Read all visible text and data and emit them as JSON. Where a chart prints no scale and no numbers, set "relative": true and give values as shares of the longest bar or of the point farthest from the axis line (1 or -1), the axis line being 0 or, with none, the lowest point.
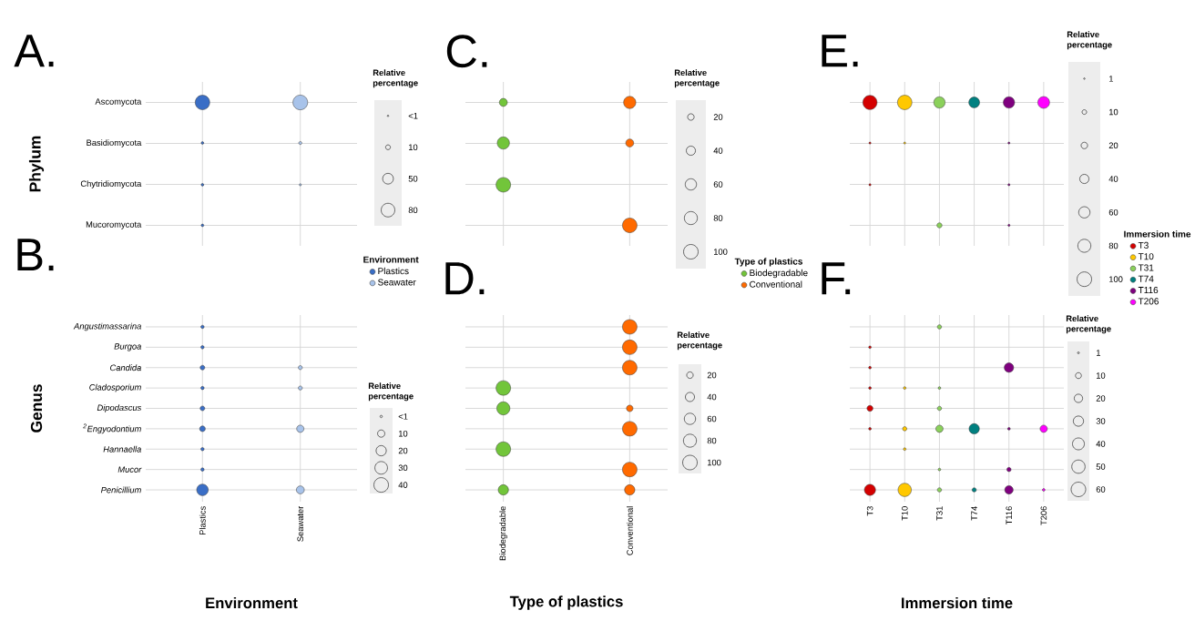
{
  "chart_data": [
    {
      "type": "bubble",
      "title": "A.",
      "ylabel": "Phylum",
      "categories": [
        "Plastics",
        "Seawater"
      ],
      "y_categories": [
        "Ascomycota",
        "Basidiomycota",
        "Chytridiomycota",
        "Mucoromycota"
      ],
      "relative": true,
      "tick_labels": "y",
      "grid": true,
      "annotations": [
        "Relative percentage"
      ],
      "size_legend": [
        {
          "value": 1,
          "label": "<1"
        },
        10,
        50,
        80
      ],
      "series": [
        {
          "color": "#3a6ec6",
          "x": [
            "Plastics",
            "Plastics",
            "Plastics",
            "Plastics"
          ],
          "values": [
            1,
            0.67,
            0.33,
            0
          ],
          "sizes": [
            90,
            3,
            3,
            3
          ]
        },
        {
          "color": "#a8c3ea",
          "x": [
            "Seawater",
            "Seawater",
            "Seawater"
          ],
          "values": [
            1,
            0.67,
            0.33
          ],
          "sizes": [
            93,
            4,
            2
          ]
        }
      ]
    },
    {
      "type": "bubble",
      "title": "B.",
      "ylabel": "Genus",
      "xlabel": "Environment",
      "categories": [
        "Plastics",
        "Seawater"
      ],
      "y_categories": [
        "Angustimassarina",
        "Burgoa",
        "Candida",
        "Cladosporium",
        "Dipodascus",
        "$^{2}$Engyodontium",
        "Hannaella",
        "Mucor",
        "Penicillium"
      ],
      "relative": true,
      "grid": true,
      "legend": "top right",
      "legend_title": "Environment",
      "annotations": [
        "Relative percentage"
      ],
      "size_legend": [
        {
          "value": 1,
          "label": "<1"
        },
        10,
        20,
        30,
        40
      ],
      "series": [
        {
          "name": "Plastics",
          "color": "#3a6ec6",
          "x": [
            "Plastics",
            "Plastics",
            "Plastics",
            "Plastics",
            "Plastics",
            "Plastics",
            "Plastics",
            "Plastics",
            "Plastics"
          ],
          "values": [
            1,
            0.875,
            0.75,
            0.625,
            0.5,
            0.375,
            0.25,
            0.125,
            0
          ],
          "sizes": [
            2,
            2,
            4,
            2,
            4,
            6,
            2,
            2,
            25
          ]
        },
        {
          "name": "Seawater",
          "color": "#a8c3ea",
          "x": [
            "Seawater",
            "Seawater",
            "Seawater",
            "Seawater"
          ],
          "values": [
            0.75,
            0.625,
            0.375,
            0
          ],
          "sizes": [
            3,
            3,
            10,
            12
          ]
        }
      ]
    },
    {
      "type": "bubble",
      "title": "C.",
      "categories": [
        "Biodegradable",
        "Conventional"
      ],
      "y_categories": [
        null,
        null,
        null,
        null
      ],
      "relative": true,
      "tick_labels": false,
      "grid": true,
      "annotations": [
        "Relative percentage"
      ],
      "size_legend": [
        20,
        40,
        60,
        80,
        100
      ],
      "series": [
        {
          "color": "#72c53a",
          "x": [
            "Biodegradable",
            "Biodegradable",
            "Biodegradable"
          ],
          "values": [
            1,
            0.67,
            0.33
          ],
          "sizes": [
            30,
            70,
            100
          ]
        },
        {
          "color": "#ff6a00",
          "x": [
            "Conventional",
            "Conventional",
            "Conventional"
          ],
          "values": [
            1,
            0.67,
            0
          ],
          "sizes": [
            70,
            30,
            100
          ]
        }
      ]
    },
    {
      "type": "bubble",
      "title": "D.",
      "xlabel": "Type of plastics",
      "categories": [
        "Biodegradable",
        "Conventional"
      ],
      "y_categories": [
        null,
        null,
        null,
        null,
        null,
        null,
        null,
        null,
        null
      ],
      "relative": true,
      "tick_labels": "x",
      "grid": true,
      "legend": "top right",
      "legend_title": "Type of plastics",
      "annotations": [
        "Relative percentage"
      ],
      "size_legend": [
        20,
        40,
        60,
        80,
        100
      ],
      "series": [
        {
          "name": "Biodegradable",
          "color": "#72c53a",
          "x": [
            "Biodegradable",
            "Biodegradable",
            "Biodegradable",
            "Biodegradable"
          ],
          "values": [
            0.625,
            0.5,
            0.25,
            0
          ],
          "sizes": [
            100,
            80,
            100,
            50
          ]
        },
        {
          "name": "Conventional",
          "color": "#ff6a00",
          "x": [
            "Conventional",
            "Conventional",
            "Conventional",
            "Conventional",
            "Conventional",
            "Conventional",
            "Conventional"
          ],
          "values": [
            1,
            0.875,
            0.75,
            0.5,
            0.375,
            0.125,
            0
          ],
          "sizes": [
            100,
            100,
            100,
            20,
            100,
            100,
            50
          ]
        }
      ]
    },
    {
      "type": "bubble",
      "title": "E.",
      "categories": [
        "T3",
        "T10",
        "T31",
        "T74",
        "T116",
        "T206"
      ],
      "y_categories": [
        null,
        null,
        null,
        null
      ],
      "relative": true,
      "tick_labels": false,
      "grid": true,
      "annotations": [
        "Relative percentage"
      ],
      "size_legend": [
        1,
        10,
        20,
        40,
        60,
        80,
        100
      ],
      "series": [
        {
          "color": "#d40000",
          "x": [
            "T3",
            "T3",
            "T3"
          ],
          "values": [
            1,
            0.67,
            0.33
          ],
          "sizes": [
            95,
            2,
            2
          ]
        },
        {
          "color": "#ffc800",
          "x": [
            "T10",
            "T10"
          ],
          "values": [
            1,
            0.67
          ],
          "sizes": [
            98,
            2
          ]
        },
        {
          "color": "#8bd15b",
          "x": [
            "T31",
            "T31"
          ],
          "values": [
            1,
            0
          ],
          "sizes": [
            60,
            12
          ]
        },
        {
          "color": "#008080",
          "x": [
            "T74"
          ],
          "values": [
            1
          ],
          "sizes": [
            55
          ]
        },
        {
          "color": "#7f007f",
          "x": [
            "T116",
            "T116",
            "T116",
            "T116"
          ],
          "values": [
            1,
            0.67,
            0.33,
            0
          ],
          "sizes": [
            60,
            2,
            2,
            2
          ]
        },
        {
          "color": "#ff00ff",
          "x": [
            "T206"
          ],
          "values": [
            1
          ],
          "sizes": [
            65
          ]
        }
      ]
    },
    {
      "type": "bubble",
      "title": "F.",
      "xlabel": "Immersion time",
      "categories": [
        "T3",
        "T10",
        "T31",
        "T74",
        "T116",
        "T206"
      ],
      "y_categories": [
        null,
        null,
        null,
        null,
        null,
        null,
        null,
        null,
        null
      ],
      "relative": true,
      "tick_labels": "x",
      "grid": true,
      "legend": "top right",
      "legend_title": "Immersion time",
      "annotations": [
        "Relative percentage"
      ],
      "size_legend": [
        1,
        10,
        20,
        30,
        40,
        50,
        60
      ],
      "series": [
        {
          "name": "T3",
          "color": "#d40000",
          "x": [
            "T3",
            "T3",
            "T3",
            "T3",
            "T3",
            "T3"
          ],
          "values": [
            0.875,
            0.75,
            0.625,
            0.5,
            0.375,
            0
          ],
          "sizes": [
            2,
            2,
            2,
            10,
            2,
            35
          ]
        },
        {
          "name": "T10",
          "color": "#ffc800",
          "x": [
            "T10",
            "T10",
            "T10",
            "T10"
          ],
          "values": [
            0.625,
            0.375,
            0.25,
            0
          ],
          "sizes": [
            2,
            5,
            2,
            50
          ]
        },
        {
          "name": "T31",
          "color": "#8bd15b",
          "x": [
            "T31",
            "T31",
            "T31",
            "T31",
            "T31",
            "T31"
          ],
          "values": [
            1,
            0.625,
            0.5,
            0.375,
            0.125,
            0
          ],
          "sizes": [
            5,
            2,
            5,
            15,
            2,
            5
          ]
        },
        {
          "name": "T74",
          "color": "#008080",
          "x": [
            "T74",
            "T74"
          ],
          "values": [
            0.375,
            0
          ],
          "sizes": [
            30,
            5
          ]
        },
        {
          "name": "T116",
          "color": "#7f007f",
          "x": [
            "T116",
            "T116",
            "T116",
            "T116"
          ],
          "values": [
            0.75,
            0.375,
            0.125,
            0
          ],
          "sizes": [
            25,
            2,
            5,
            20
          ]
        },
        {
          "name": "T206",
          "color": "#ff00ff",
          "x": [
            "T206",
            "T206"
          ],
          "values": [
            0.375,
            0
          ],
          "sizes": [
            15,
            2
          ]
        }
      ]
    }
  ]
}
